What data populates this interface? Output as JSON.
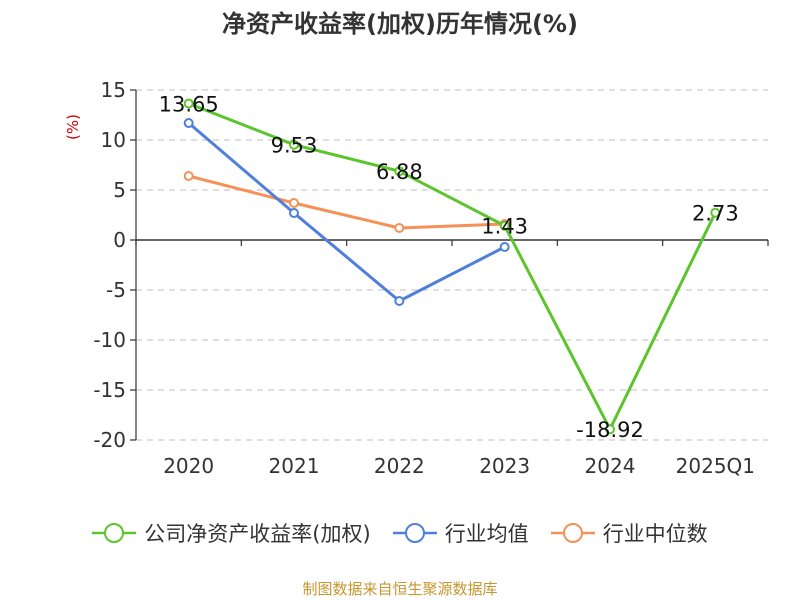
{
  "chart_data": {
    "type": "line",
    "title": "净资产收益率(加权)历年情况(%)",
    "ylabel": "(%)",
    "categories": [
      "2020",
      "2021",
      "2022",
      "2023",
      "2024",
      "2025Q1"
    ],
    "ylim": [
      -20,
      15
    ],
    "yticks": [
      15,
      10,
      5,
      0,
      -5,
      -10,
      -15,
      -20
    ],
    "grid": true,
    "legend_position": "bottom",
    "series": [
      {
        "name": "公司净资产收益率(加权)",
        "color": "#5cc42d",
        "values": [
          13.65,
          9.53,
          6.88,
          1.43,
          -18.92,
          2.73
        ],
        "labels": [
          "13.65",
          "9.53",
          "6.88",
          "1.43",
          "-18.92",
          "2.73"
        ]
      },
      {
        "name": "行业均值",
        "color": "#4f7fda",
        "values": [
          11.7,
          2.7,
          -6.1,
          -0.7,
          null,
          null
        ]
      },
      {
        "name": "行业中位数",
        "color": "#f59156",
        "values": [
          6.4,
          3.7,
          1.2,
          1.6,
          null,
          null
        ]
      }
    ]
  },
  "source_note": "制图数据来自恒生聚源数据库"
}
